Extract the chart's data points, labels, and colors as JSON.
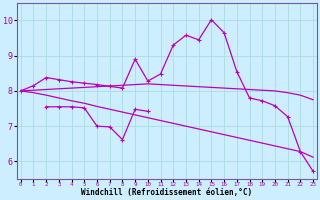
{
  "x_ticks": [
    0,
    1,
    2,
    3,
    4,
    5,
    6,
    7,
    8,
    9,
    10,
    11,
    12,
    13,
    14,
    15,
    16,
    17,
    18,
    19,
    20,
    21,
    22,
    23
  ],
  "ylim": [
    5.5,
    10.5
  ],
  "xlim": [
    -0.3,
    23.3
  ],
  "yticks": [
    6,
    7,
    8,
    9,
    10
  ],
  "xlabel": "Windchill (Refroidissement éolien,°C)",
  "bg_color": "#cceeff",
  "grid_color": "#aadddd",
  "line_color": "#bb00bb",
  "line1": [
    8.0,
    8.15,
    8.38,
    8.32,
    8.26,
    8.22,
    8.18,
    8.13,
    8.08,
    8.9,
    8.28,
    8.48,
    9.3,
    9.58,
    9.45,
    10.02,
    9.65,
    8.55,
    7.8,
    7.72,
    7.58,
    7.27,
    6.28,
    5.72
  ],
  "line2": [
    8.0,
    8.02,
    8.04,
    8.06,
    8.08,
    8.1,
    8.12,
    8.14,
    8.16,
    8.18,
    8.2,
    8.18,
    8.16,
    8.14,
    8.12,
    8.1,
    8.08,
    8.06,
    8.04,
    8.02,
    8.0,
    7.95,
    7.88,
    7.75
  ],
  "line3": [
    8.0,
    7.95,
    7.88,
    7.8,
    7.72,
    7.65,
    7.56,
    7.48,
    7.4,
    7.32,
    7.24,
    7.16,
    7.08,
    7.0,
    6.92,
    6.84,
    6.76,
    6.68,
    6.6,
    6.52,
    6.44,
    6.36,
    6.28,
    6.12
  ],
  "line4": [
    null,
    null,
    7.55,
    7.55,
    7.55,
    7.52,
    7.0,
    6.98,
    6.62,
    7.48,
    7.42,
    null,
    null,
    null,
    null,
    null,
    null,
    null,
    null,
    null,
    null,
    null,
    null,
    null
  ]
}
